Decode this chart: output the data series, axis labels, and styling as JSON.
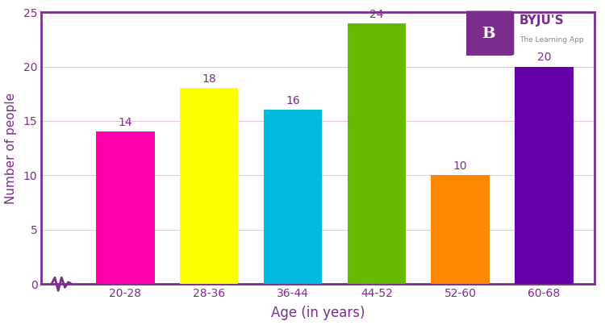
{
  "categories": [
    "20-28",
    "28-36",
    "36-44",
    "44-52",
    "52-60",
    "60-68"
  ],
  "values": [
    14,
    18,
    16,
    24,
    10,
    20
  ],
  "bar_colors": [
    "#FF00AA",
    "#FFFF00",
    "#00BBDD",
    "#66BB00",
    "#FF8800",
    "#6600AA"
  ],
  "bar_edge_color": "none",
  "xlabel": "Age (in years)",
  "ylabel": "Number of people",
  "xlabel_color": "#7B2D8B",
  "ylabel_color": "#7B2D8B",
  "xlabel_fontsize": 12,
  "ylabel_fontsize": 11,
  "ylim": [
    0,
    25
  ],
  "yticks": [
    0,
    5,
    10,
    15,
    20,
    25
  ],
  "tick_color": "#7B2D8B",
  "tick_fontsize": 10,
  "spine_color": "#7B2D8B",
  "spine_linewidth": 2.0,
  "grid_color": "#E8C8E8",
  "grid_linewidth": 0.8,
  "label_fontsize": 10,
  "label_color": "#7B2D8B",
  "background_color": "#FFFFFF",
  "bar_width": 0.7,
  "zigzag_color": "#7B2D8B",
  "byju_box_color": "#7B2D8B",
  "byju_text": "BYJU'S",
  "byju_subtext": "The Learning App"
}
